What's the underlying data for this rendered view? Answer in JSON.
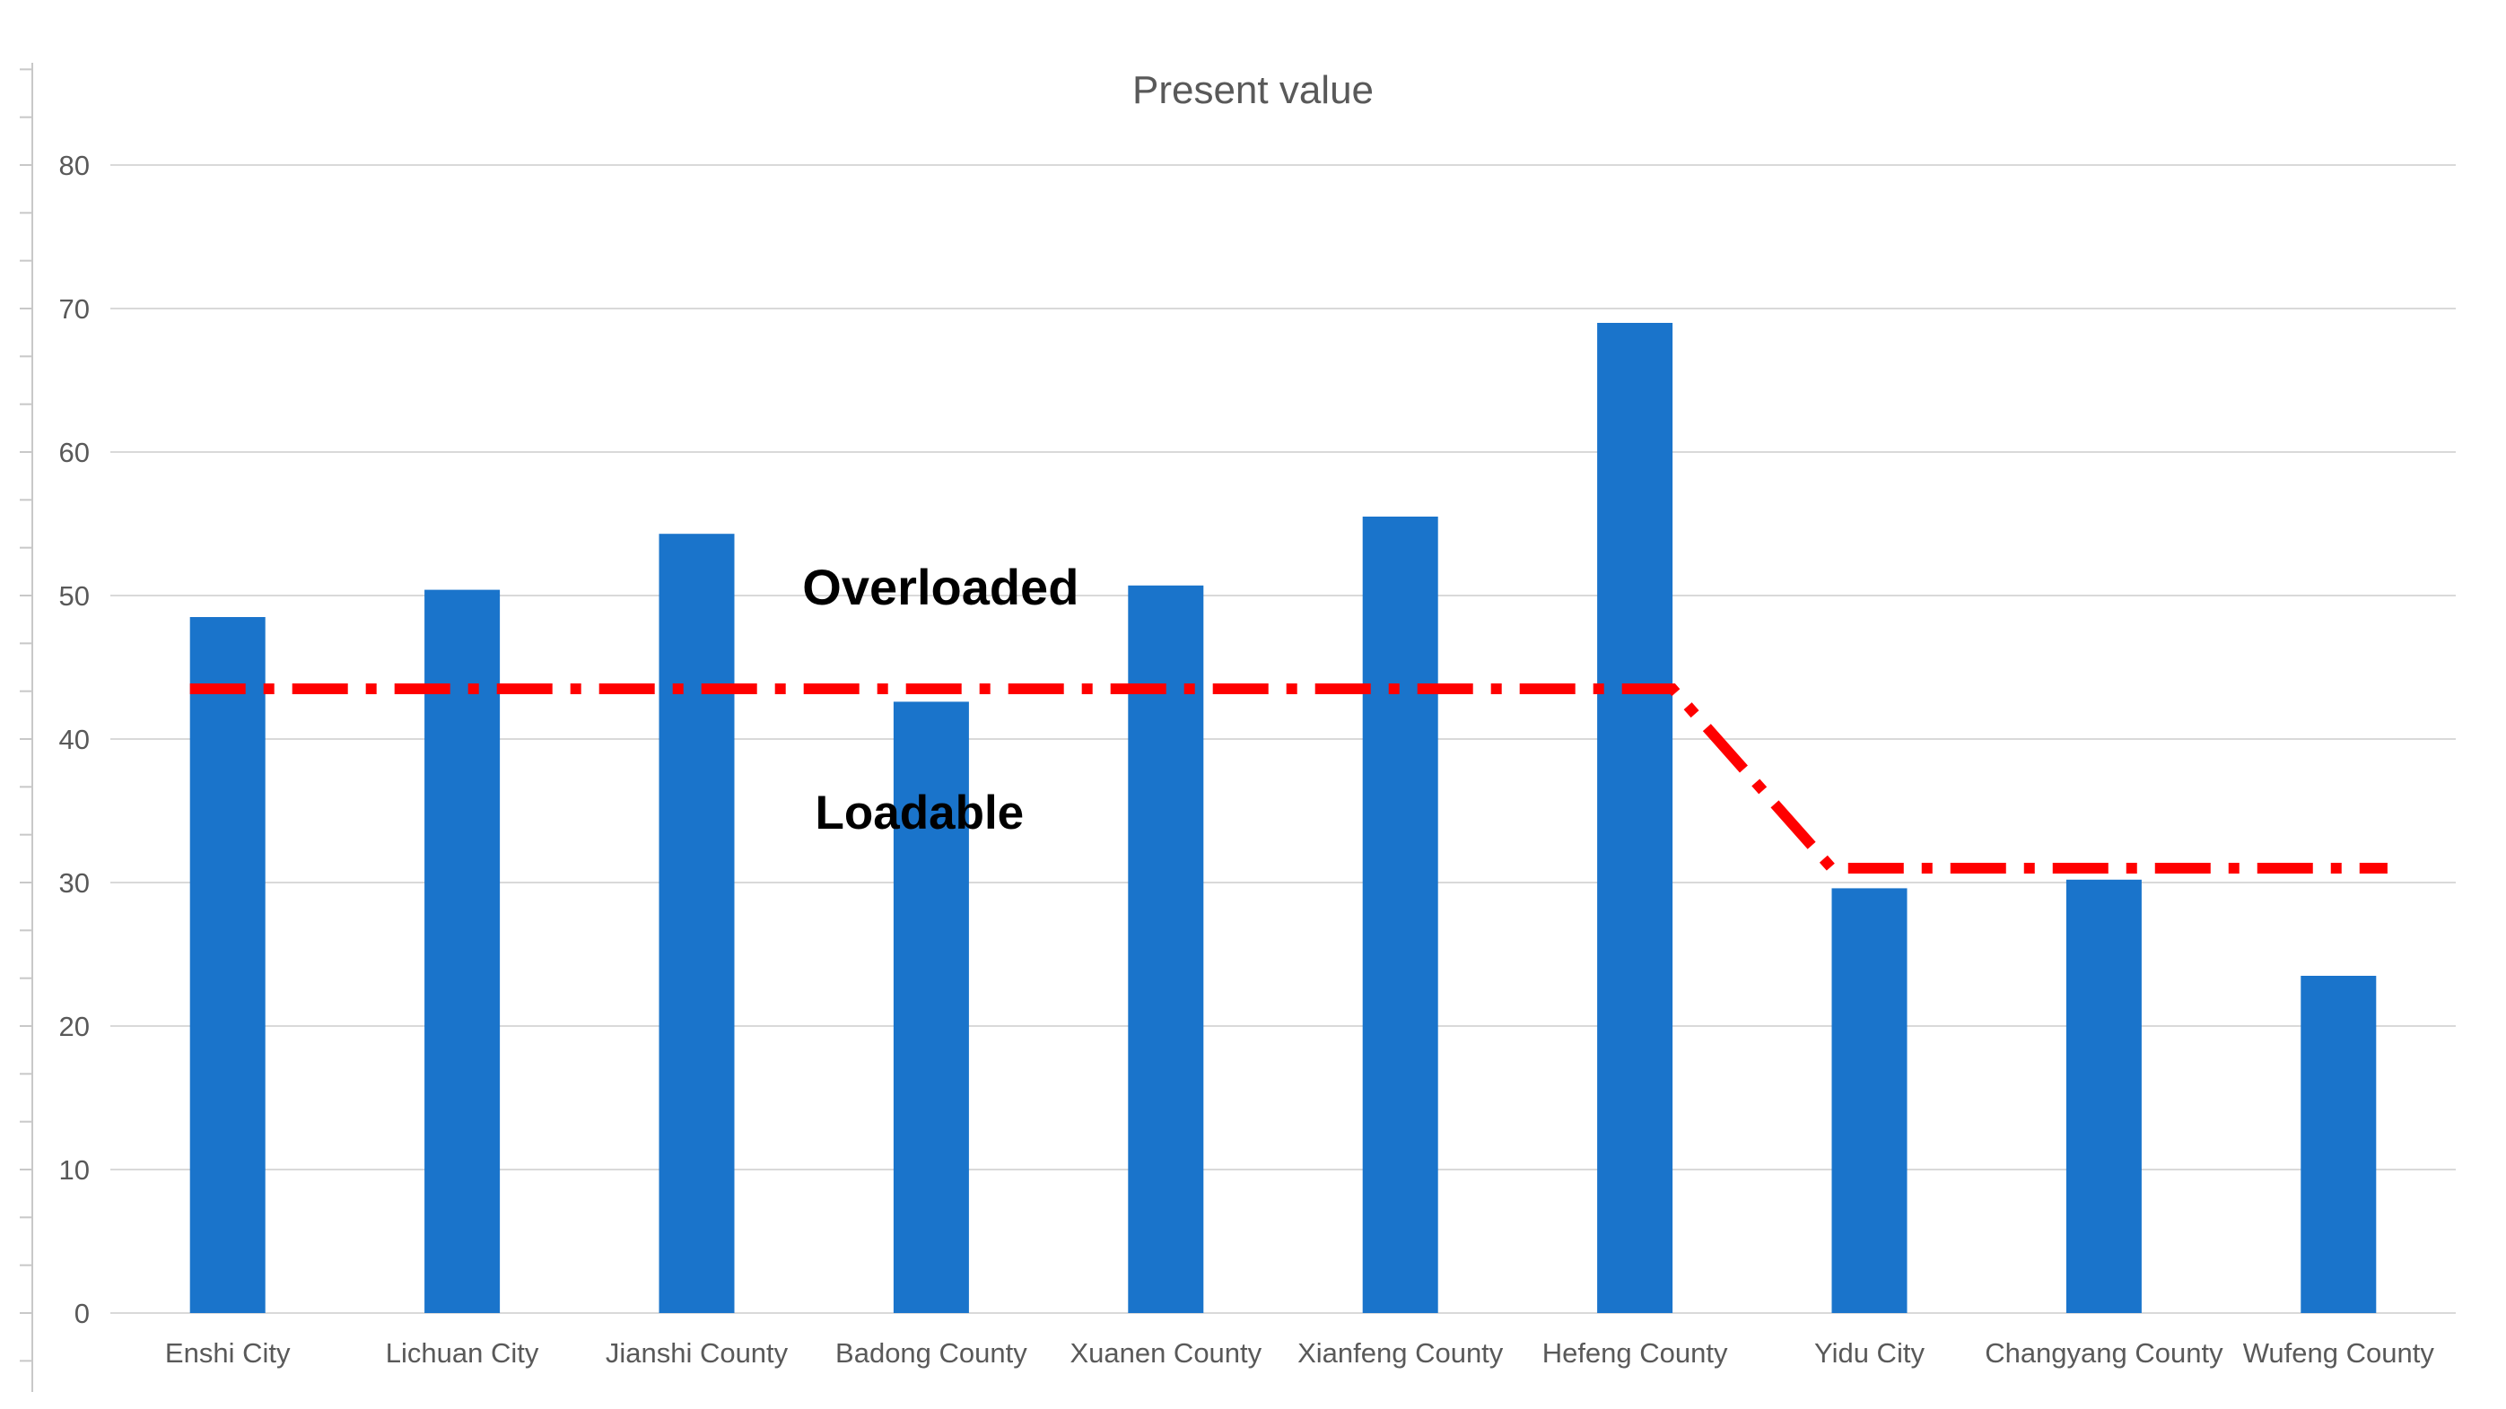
{
  "page": {
    "background": "#ffffff"
  },
  "chart_data": {
    "type": "bar",
    "title": "Present value",
    "title_color": "#595959",
    "categories": [
      "Enshi City",
      "Lichuan City",
      "Jianshi County",
      "Badong County",
      "Xuanen County",
      "Xianfeng County",
      "Hefeng County",
      "Yidu City",
      "Changyang County",
      "Wufeng County"
    ],
    "series": [
      {
        "name": "Present value",
        "type": "bar",
        "color": "#1a74cb",
        "values": [
          48.5,
          50.4,
          54.3,
          42.6,
          50.7,
          55.5,
          69.0,
          29.6,
          30.2,
          23.5
        ]
      },
      {
        "name": "threshold-line",
        "type": "line-dash-dot",
        "color": "#ff0000",
        "values": [
          43.5,
          43.5,
          43.5,
          43.5,
          43.5,
          43.5,
          43.5,
          31.0,
          31.0,
          31.0
        ],
        "shape_note": "horizontal at 43.5 from Enshi City bar through Hefeng County bar right edge, slants down to 31.0 at Yidu City bar left edge, then horizontal past Wufeng County"
      }
    ],
    "annotations": [
      {
        "text": "Overloaded",
        "at_category": 3.54,
        "at_value": 50.6,
        "bold": true,
        "color": "#000000",
        "font_px": 56
      },
      {
        "text": "Loadable",
        "at_category": 3.45,
        "at_value": 34.9,
        "bold": true,
        "color": "#000000",
        "font_px": 53
      }
    ],
    "xlabel": "",
    "ylabel": "",
    "ylim": [
      0,
      80
    ],
    "y_major_ticks": [
      0,
      10,
      20,
      30,
      40,
      50,
      60,
      70,
      80
    ],
    "y_minor_per_major": 3,
    "grid": "horizontal-major",
    "legend": "none",
    "axis_label_color": "#595959",
    "gridline_color": "#d9d9d9",
    "axis_line_color": "#c8c8c8"
  }
}
